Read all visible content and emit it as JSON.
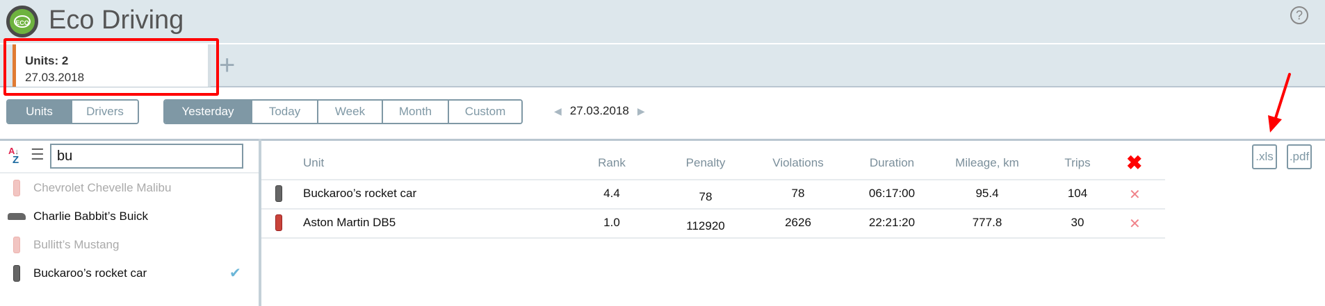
{
  "app": {
    "title": "Eco Driving",
    "logo_text": "ECO",
    "help_icon": "question-circle-icon"
  },
  "tab": {
    "title": "Units: 2",
    "date": "27.03.2018",
    "accent": "#e07b33",
    "add": "+"
  },
  "toolbar": {
    "mode": [
      {
        "label": "Units",
        "active": true
      },
      {
        "label": "Drivers",
        "active": false
      }
    ],
    "periods": [
      {
        "label": "Yesterday",
        "active": true
      },
      {
        "label": "Today",
        "active": false
      },
      {
        "label": "Week",
        "active": false
      },
      {
        "label": "Month",
        "active": false
      },
      {
        "label": "Custom",
        "active": false
      }
    ],
    "date": "27.03.2018"
  },
  "sidebar": {
    "search_value": "bu",
    "sort_icon": "sort-az-icon",
    "list_icon": "list-icon",
    "units": [
      {
        "name": "Chevrolet Chevelle Malibu",
        "dim": true,
        "checked": false
      },
      {
        "name": "Charlie Babbit’s Buick",
        "dim": false,
        "checked": false
      },
      {
        "name": "Bullitt’s Mustang",
        "dim": true,
        "checked": false
      },
      {
        "name": "Buckaroo’s rocket car",
        "dim": false,
        "checked": true
      }
    ]
  },
  "table": {
    "headers": [
      "Unit",
      "Rank",
      "Penalty",
      "Violations",
      "Duration",
      "Mileage, km",
      "Trips"
    ],
    "rows": [
      {
        "unit": "Buckaroo’s rocket car",
        "rank": "4.4",
        "penalty": "78",
        "violations": "78",
        "duration": "06:17:00",
        "mileage": "95.4",
        "trips": "104"
      },
      {
        "unit": "Aston Martin DB5",
        "rank": "1.0",
        "penalty": "112920",
        "violations": "2626",
        "duration": "22:21:20",
        "mileage": "777.8",
        "trips": "30"
      }
    ],
    "export": [
      ".xls",
      ".pdf"
    ]
  },
  "colors": {
    "accent": "#7f98a5",
    "header_bg": "#dde7ec",
    "annotation": "#ff0000"
  }
}
